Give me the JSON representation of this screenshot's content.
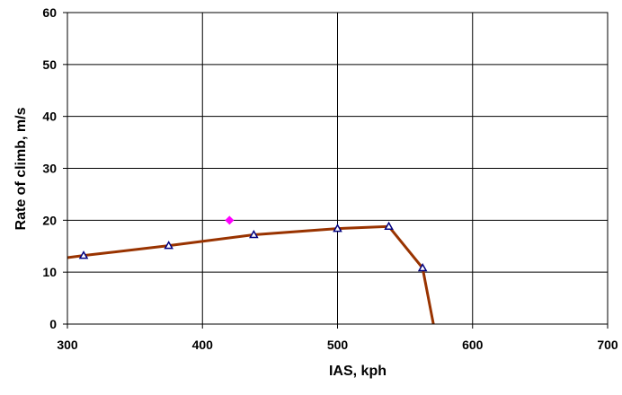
{
  "chart_data": {
    "type": "line",
    "x_label": "IAS, kph",
    "y_label": "Rate of climb, m/s",
    "xlim": [
      300,
      700
    ],
    "xticks": [
      300,
      400,
      500,
      600,
      700
    ],
    "ylim": [
      0,
      60
    ],
    "yticks": [
      0,
      10,
      20,
      30,
      40,
      50,
      60
    ],
    "grid": true,
    "series": [
      {
        "color": "#993300",
        "marker_color": "#000080",
        "x": [
          300,
          312,
          375,
          438,
          500,
          538,
          563,
          571
        ],
        "values": [
          12.8,
          13.2,
          15.1,
          17.2,
          18.4,
          18.8,
          10.8,
          0
        ]
      }
    ],
    "points": [
      {
        "color": "#ff00ff",
        "x": [
          420
        ],
        "values": [
          20
        ]
      }
    ]
  }
}
